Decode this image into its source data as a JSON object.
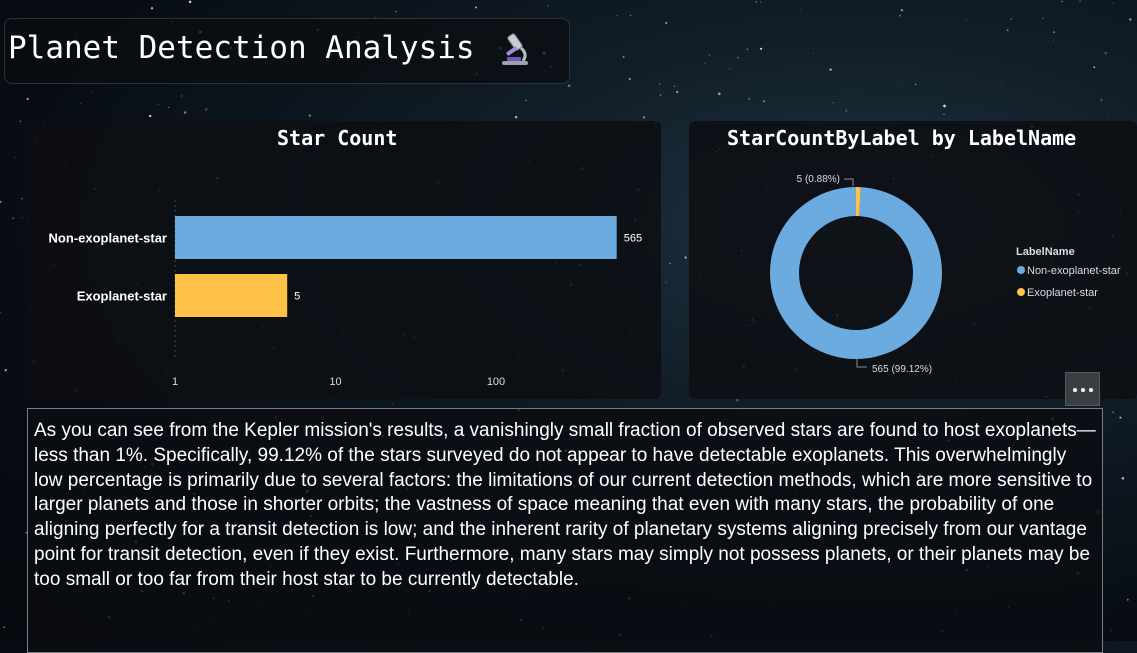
{
  "page": {
    "title": "Planet Detection Analysis",
    "title_icon": "microscope-icon"
  },
  "bar_panel": {
    "title": "Star Count"
  },
  "donut_panel": {
    "title": "StarCountByLabel by LabelName",
    "legend_title": "LabelName"
  },
  "colors": {
    "non_exoplanet": "#6cabe0",
    "exoplanet": "#ffc247"
  },
  "chart_data": [
    {
      "type": "bar",
      "orientation": "horizontal",
      "title": "Star Count",
      "x_scale": "log",
      "xlim": [
        1,
        1000
      ],
      "x_ticks": [
        "1",
        "10",
        "100"
      ],
      "categories": [
        "Non-exoplanet-star",
        "Exoplanet-star"
      ],
      "values": [
        565,
        5
      ],
      "data_labels": [
        "565",
        "5"
      ]
    },
    {
      "type": "pie",
      "style": "donut",
      "title": "StarCountByLabel by LabelName",
      "legend_title": "LabelName",
      "legend_position": "right",
      "labels": [
        "Non-exoplanet-star",
        "Exoplanet-star"
      ],
      "values": [
        565,
        5
      ],
      "data_labels": [
        "565 (99.12%)",
        "5 (0.88%)"
      ]
    }
  ],
  "commentary": "As you can see from the Kepler mission's results, a vanishingly small fraction of observed stars are found to host exoplanets—less than 1%. Specifically, 99.12% of the stars surveyed do not appear to have detectable exoplanets. This overwhelmingly low percentage is primarily due to several factors: the limitations of our current detection methods, which are more sensitive to larger planets and those in shorter orbits; the vastness of space meaning that even with many stars, the probability of one aligning perfectly for a transit detection is low; and the inherent rarity of planetary systems aligning precisely from our vantage point for transit detection, even if they exist. Furthermore, many stars may simply not possess planets, or their planets may be too small or too far from their host star to be currently detectable."
}
